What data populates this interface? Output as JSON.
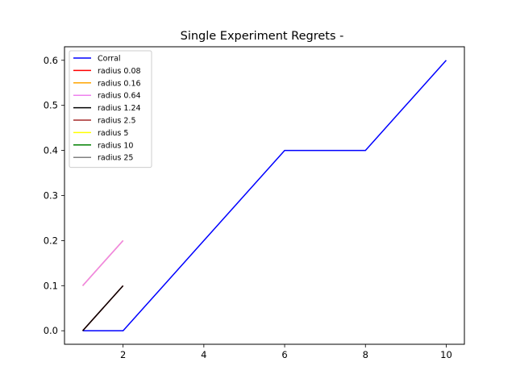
{
  "chart_data": {
    "type": "line",
    "title": "Single Experiment Regrets -",
    "xlabel": "",
    "ylabel": "",
    "xlim": [
      0.55,
      10.45
    ],
    "ylim": [
      -0.03,
      0.63
    ],
    "xticks": [
      2,
      4,
      6,
      8,
      10
    ],
    "yticks": [
      0.0,
      0.1,
      0.2,
      0.3,
      0.4,
      0.5,
      0.6
    ],
    "grid": false,
    "legend_position": "top-left",
    "series": [
      {
        "name": "Corral",
        "color": "#0000ff",
        "x": [
          1,
          2,
          3,
          4,
          5,
          6,
          7,
          8,
          9,
          10
        ],
        "y": [
          0.0,
          0.0,
          0.1,
          0.2,
          0.3,
          0.4,
          0.4,
          0.4,
          0.5,
          0.6
        ]
      },
      {
        "name": "radius 0.08",
        "color": "#ff0000",
        "x": [
          1,
          2
        ],
        "y": [
          0.0,
          0.1
        ]
      },
      {
        "name": "radius 0.16",
        "color": "#ffa500",
        "x": [
          1,
          2
        ],
        "y": [
          0.1,
          0.2
        ]
      },
      {
        "name": "radius 0.64",
        "color": "#ee82ee",
        "x": [
          1,
          2
        ],
        "y": [
          0.1,
          0.2
        ]
      },
      {
        "name": "radius 1.24",
        "color": "#000000",
        "x": [
          1,
          2
        ],
        "y": [
          0.0,
          0.1
        ]
      },
      {
        "name": "radius 2.5",
        "color": "#a52a2a",
        "x": [],
        "y": []
      },
      {
        "name": "radius 5",
        "color": "#ffff00",
        "x": [],
        "y": []
      },
      {
        "name": "radius 10",
        "color": "#008000",
        "x": [],
        "y": []
      },
      {
        "name": "radius 25",
        "color": "#808080",
        "x": [],
        "y": []
      }
    ]
  }
}
